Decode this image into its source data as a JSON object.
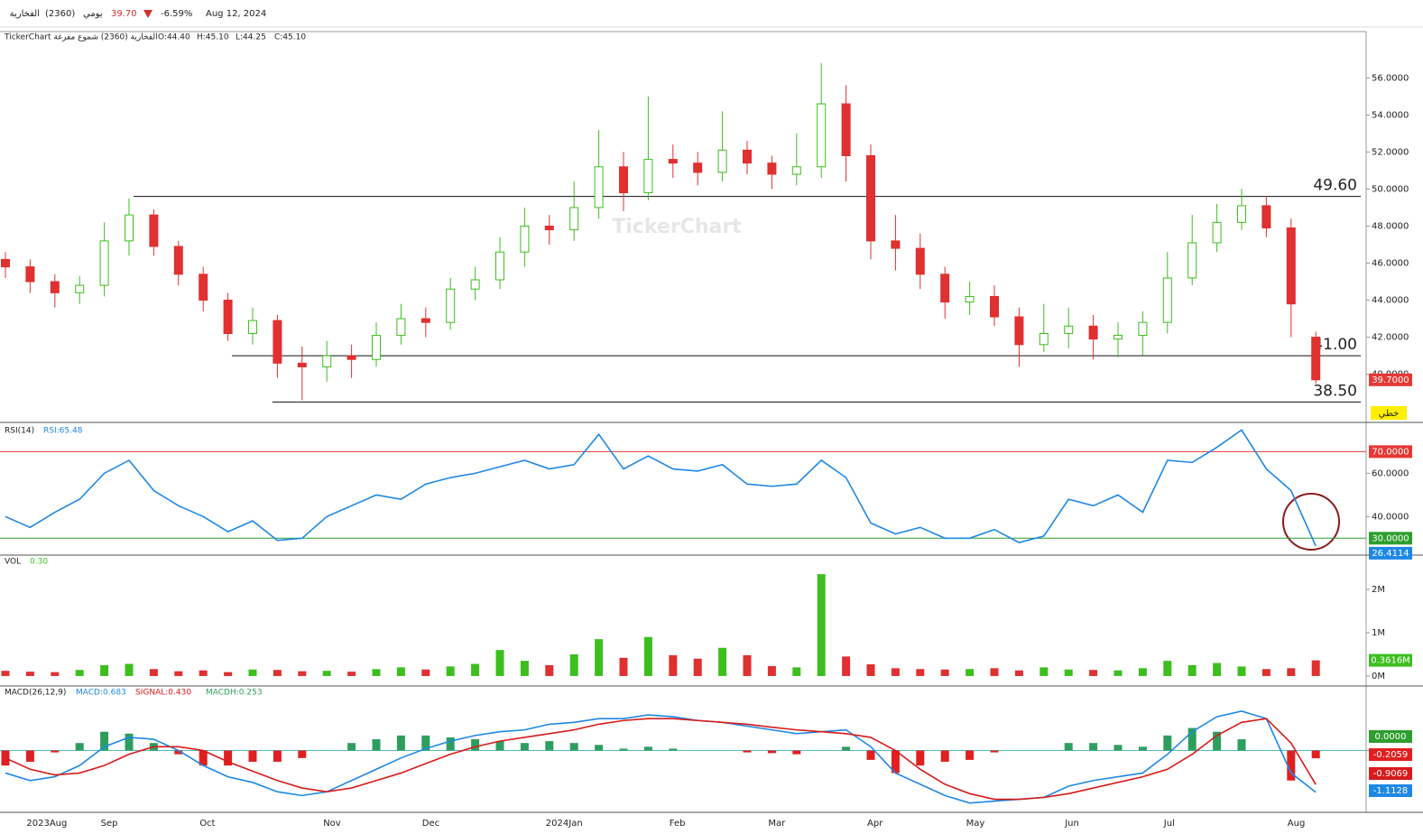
{
  "header": {
    "name": "الفخارية",
    "code": "(2360)",
    "period": "يومي",
    "price": "39.70",
    "change": "-6.59%",
    "date": "Aug 12, 2024"
  },
  "chart_data": [
    {
      "type": "candlestick",
      "title": "TickerChart الفخارية (2360) شموع مفرغة",
      "ohlc_labels": [
        "O:44.40",
        "H:45.10",
        "L:44.25",
        "C:45.10"
      ],
      "watermark": "TickerChart",
      "scale_button": "خطي",
      "current_label": "39.7000",
      "up_color": "#3cbf1e",
      "down_color": "#e03030",
      "categories": [
        null,
        "2023Aug",
        null,
        null,
        "Sep",
        null,
        null,
        null,
        "Oct",
        null,
        null,
        null,
        null,
        "Nov",
        null,
        null,
        null,
        "Dec",
        null,
        null,
        null,
        null,
        "2024Jan",
        null,
        null,
        null,
        null,
        "Feb",
        null,
        null,
        null,
        "Mar",
        null,
        null,
        null,
        "Apr",
        null,
        null,
        null,
        "May",
        null,
        null,
        null,
        "Jun",
        null,
        null,
        null,
        "Jul",
        null,
        null,
        null,
        null,
        "Aug",
        null
      ],
      "open": [
        46.2,
        45.8,
        45.0,
        44.4,
        44.8,
        47.2,
        48.6,
        46.9,
        45.4,
        44.0,
        42.2,
        42.9,
        40.6,
        40.4,
        41.0,
        40.8,
        42.1,
        43.0,
        42.8,
        44.6,
        45.1,
        46.6,
        48.0,
        47.8,
        49.0,
        51.2,
        49.8,
        51.6,
        51.4,
        50.9,
        52.1,
        51.4,
        50.8,
        51.2,
        54.6,
        51.8,
        47.2,
        46.8,
        45.4,
        43.9,
        44.2,
        43.1,
        41.6,
        42.2,
        42.6,
        41.9,
        42.1,
        42.8,
        45.2,
        47.1,
        48.2,
        49.1,
        47.9,
        42.0
      ],
      "high": [
        46.6,
        46.2,
        45.4,
        45.3,
        48.2,
        49.5,
        48.9,
        47.2,
        45.8,
        44.4,
        43.6,
        43.2,
        41.5,
        41.8,
        41.6,
        42.8,
        43.8,
        43.6,
        45.2,
        45.8,
        47.4,
        49.0,
        48.6,
        50.4,
        53.2,
        52.0,
        55.0,
        52.4,
        52.0,
        54.2,
        52.6,
        51.8,
        53.0,
        56.8,
        55.6,
        52.4,
        48.6,
        47.6,
        45.8,
        45.0,
        44.8,
        43.6,
        43.8,
        43.6,
        43.2,
        42.8,
        43.4,
        46.6,
        48.6,
        49.2,
        50.0,
        49.6,
        48.4,
        42.3
      ],
      "low": [
        45.2,
        44.4,
        43.6,
        43.8,
        44.2,
        46.4,
        46.4,
        44.8,
        43.4,
        41.8,
        41.6,
        39.8,
        38.6,
        39.6,
        39.8,
        40.4,
        41.6,
        42.0,
        42.4,
        44.0,
        44.6,
        45.8,
        47.0,
        47.2,
        48.4,
        48.8,
        49.4,
        50.6,
        50.2,
        50.4,
        50.8,
        50.0,
        50.2,
        50.6,
        50.4,
        46.2,
        45.6,
        44.6,
        43.0,
        43.2,
        42.6,
        40.4,
        41.2,
        41.4,
        40.8,
        40.9,
        41.0,
        42.2,
        44.8,
        46.6,
        47.8,
        47.4,
        42.0,
        39.5
      ],
      "close": [
        45.8,
        45.0,
        44.4,
        44.8,
        47.2,
        48.6,
        46.9,
        45.4,
        44.0,
        42.2,
        42.9,
        40.6,
        40.4,
        41.0,
        40.8,
        42.1,
        43.0,
        42.8,
        44.6,
        45.1,
        46.6,
        48.0,
        47.8,
        49.0,
        51.2,
        49.8,
        51.6,
        51.4,
        50.9,
        52.1,
        51.4,
        50.8,
        51.2,
        54.6,
        51.8,
        47.2,
        46.8,
        45.4,
        43.9,
        44.2,
        43.1,
        41.6,
        42.2,
        42.6,
        41.9,
        42.1,
        42.8,
        45.2,
        47.1,
        48.2,
        49.1,
        47.9,
        43.8,
        39.7
      ],
      "ylim": [
        37.4,
        58.5
      ],
      "yticks": [
        {
          "value": 40,
          "label": "40.0000"
        },
        {
          "value": 42,
          "label": "42.0000"
        },
        {
          "value": 44,
          "label": "44.0000"
        },
        {
          "value": 46,
          "label": "46.0000"
        },
        {
          "value": 48,
          "label": "48.0000"
        },
        {
          "value": 50,
          "label": "50.0000"
        },
        {
          "value": 52,
          "label": "52.0000"
        },
        {
          "value": 54,
          "label": "54.0000"
        },
        {
          "value": 56,
          "label": "56.0000"
        }
      ],
      "levels": [
        {
          "value": 49.6,
          "label": "49.60"
        },
        {
          "value": 41,
          "label": "41.00"
        },
        {
          "value": 38.5,
          "label": "38.50"
        }
      ]
    },
    {
      "type": "line",
      "title": "RSI(14)",
      "value_title": "RSI:65.48",
      "color": "#1e88e5",
      "values": [
        40,
        35,
        42,
        48,
        60,
        66,
        52,
        45,
        40,
        33,
        38,
        29,
        30,
        40,
        45,
        50,
        48,
        55,
        58,
        60,
        63,
        66,
        62,
        64,
        78,
        62,
        68,
        62,
        61,
        64,
        55,
        54,
        55,
        66,
        58,
        37,
        32,
        35,
        30,
        30,
        34,
        28,
        31,
        48,
        45,
        50,
        42,
        66,
        65,
        72,
        80,
        62,
        52,
        26.4114
      ],
      "ylim": [
        22.2,
        83.5
      ],
      "yticks": [
        {
          "value": 60,
          "label": "60.0000"
        },
        {
          "value": 40,
          "label": "40.0000"
        }
      ],
      "levels": [
        {
          "value": 70,
          "label": "70.0000",
          "color": "#e53935"
        },
        {
          "value": 30,
          "label": "30.0000",
          "color": "#2e9e2e"
        }
      ]
    },
    {
      "type": "bar",
      "title": "VOL",
      "value_title": "0.30",
      "current_label": "0.3616M",
      "values": [
        120000,
        100000,
        90000,
        140000,
        250000,
        280000,
        160000,
        110000,
        130000,
        90000,
        150000,
        140000,
        110000,
        120000,
        100000,
        160000,
        200000,
        150000,
        220000,
        280000,
        600000,
        350000,
        250000,
        500000,
        850000,
        420000,
        900000,
        480000,
        400000,
        650000,
        480000,
        230000,
        200000,
        2350000,
        450000,
        270000,
        180000,
        160000,
        150000,
        160000,
        180000,
        130000,
        200000,
        150000,
        140000,
        130000,
        180000,
        350000,
        250000,
        300000,
        220000,
        160000,
        180000,
        361600
      ],
      "ylim": [
        -230000,
        2790000
      ],
      "yticks": [
        {
          "value": 2000000,
          "label": "2M"
        },
        {
          "value": 1000000,
          "label": "1M"
        },
        {
          "value": 0,
          "label": "0M"
        }
      ]
    },
    {
      "type": "macd",
      "title": "MACD(26,12,9)",
      "ylim": [
        -1.6,
        1.6
      ],
      "yticks": [
        {
          "value": 0,
          "label": "0.0000"
        }
      ],
      "series": [
        {
          "name": "MACD:0.683",
          "color": "#1e88e5",
          "values": [
            -0.6,
            -0.8,
            -0.7,
            -0.4,
            0.1,
            0.35,
            0.3,
            0.0,
            -0.4,
            -0.7,
            -0.85,
            -1.1,
            -1.2,
            -1.1,
            -0.8,
            -0.5,
            -0.2,
            0.05,
            0.25,
            0.4,
            0.5,
            0.55,
            0.7,
            0.75,
            0.85,
            0.85,
            0.95,
            0.9,
            0.8,
            0.75,
            0.65,
            0.55,
            0.45,
            0.5,
            0.55,
            0.1,
            -0.6,
            -0.9,
            -1.2,
            -1.4,
            -1.35,
            -1.3,
            -1.25,
            -0.95,
            -0.8,
            -0.7,
            -0.6,
            -0.1,
            0.5,
            0.9,
            1.05,
            0.85,
            -0.6,
            -1.1128
          ]
        },
        {
          "name": "SIGNAL:0.430",
          "color": "#d81b1b",
          "values": [
            -0.2,
            -0.5,
            -0.65,
            -0.6,
            -0.4,
            -0.1,
            0.1,
            0.1,
            0.0,
            -0.3,
            -0.55,
            -0.8,
            -1.0,
            -1.1,
            -1.0,
            -0.8,
            -0.6,
            -0.35,
            -0.1,
            0.1,
            0.25,
            0.35,
            0.45,
            0.55,
            0.7,
            0.8,
            0.85,
            0.85,
            0.8,
            0.75,
            0.7,
            0.62,
            0.55,
            0.5,
            0.45,
            0.35,
            0.0,
            -0.5,
            -0.9,
            -1.15,
            -1.3,
            -1.3,
            -1.25,
            -1.15,
            -1.0,
            -0.85,
            -0.7,
            -0.5,
            -0.1,
            0.4,
            0.75,
            0.85,
            0.2,
            -0.9069
          ]
        },
        {
          "name": "MACDH:0.253",
          "color": "#2e9e5e",
          "values": [
            -0.4,
            -0.3,
            -0.05,
            0.2,
            0.5,
            0.45,
            0.2,
            -0.1,
            -0.4,
            -0.4,
            -0.3,
            -0.3,
            -0.2,
            0.0,
            0.2,
            0.3,
            0.4,
            0.4,
            0.35,
            0.3,
            0.25,
            0.2,
            0.25,
            0.2,
            0.15,
            0.05,
            0.1,
            0.05,
            0.0,
            0.0,
            -0.05,
            -0.07,
            -0.1,
            0.0,
            0.1,
            -0.25,
            -0.6,
            -0.4,
            -0.3,
            -0.25,
            -0.05,
            0.0,
            0.0,
            0.2,
            0.2,
            0.15,
            0.1,
            0.4,
            0.6,
            0.5,
            0.3,
            0.0,
            -0.8,
            -0.2059
          ]
        }
      ]
    }
  ]
}
